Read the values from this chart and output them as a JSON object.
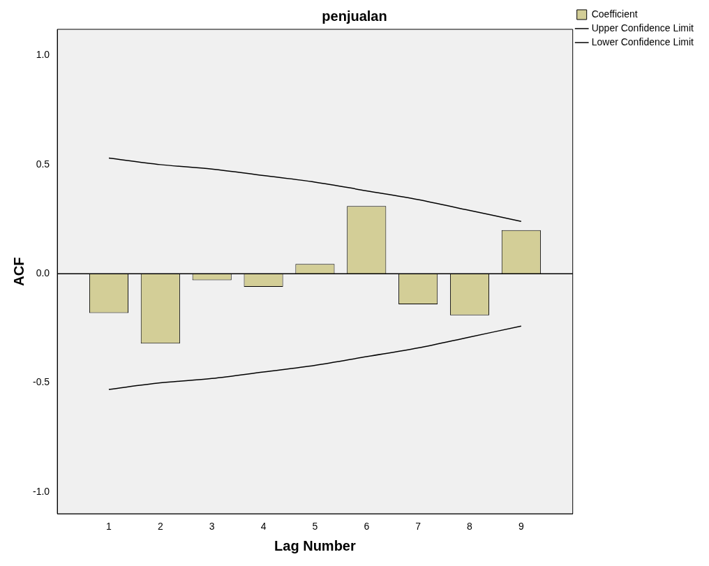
{
  "chart_data": {
    "type": "bar",
    "title": "penjualan",
    "xlabel": "Lag Number",
    "ylabel": "ACF",
    "x": [
      1,
      2,
      3,
      4,
      5,
      6,
      7,
      8,
      9
    ],
    "xlim": [
      0,
      10
    ],
    "xticks": [
      1,
      2,
      3,
      4,
      5,
      6,
      7,
      8,
      9
    ],
    "ylim": [
      -1.1,
      1.12
    ],
    "yticks": [
      {
        "value": -1,
        "label": "-1.0"
      },
      {
        "value": -0.5,
        "label": "-0.5"
      },
      {
        "value": 0,
        "label": "0.0"
      },
      {
        "value": 0.5,
        "label": "0.5"
      },
      {
        "value": 1,
        "label": "1.0"
      }
    ],
    "series": [
      {
        "name": "Coefficient",
        "color": "#d3ce97",
        "values": [
          -0.18,
          -0.32,
          -0.03,
          -0.06,
          0.045,
          0.31,
          -0.14,
          -0.19,
          0.2
        ]
      },
      {
        "name": "Upper Confidence Limit",
        "type": "line",
        "color": "#000000",
        "values": [
          0.53,
          0.5,
          0.48,
          0.45,
          0.42,
          0.38,
          0.34,
          0.29,
          0.24
        ]
      },
      {
        "name": "Lower Confidence Limit",
        "type": "line",
        "color": "#000000",
        "values": [
          -0.53,
          -0.5,
          -0.48,
          -0.45,
          -0.42,
          -0.38,
          -0.34,
          -0.29,
          -0.24
        ]
      }
    ],
    "ref_lines": [
      {
        "axis": "y",
        "value": 0,
        "color": "#000000"
      }
    ],
    "grid": false,
    "legend": "top right",
    "marker": "none"
  }
}
